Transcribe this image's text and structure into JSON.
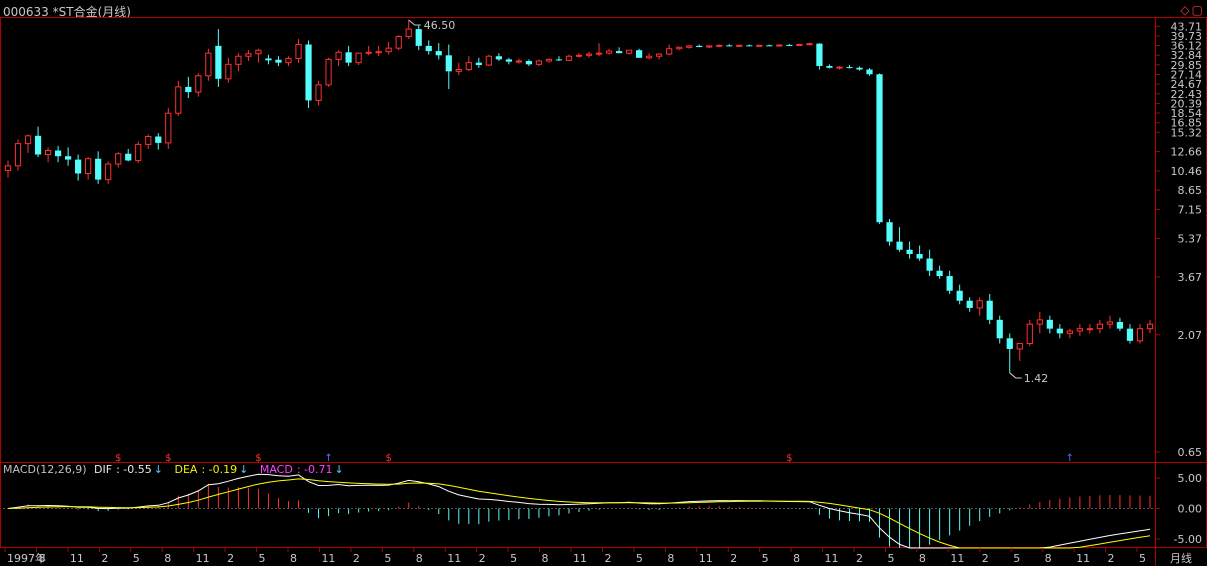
{
  "title": "000633 *ST合金(月线)",
  "header_icons": [
    "diamond-icon",
    "restore-window-icon"
  ],
  "colors": {
    "up": "#ff3030",
    "down": "#54fcfc",
    "border": "#b00000",
    "axis_text": "#c8c8c8",
    "dif": "#ffffff",
    "dea": "#ffff00",
    "macd": "#ff40ff"
  },
  "chart_data": [
    {
      "type": "candlestick",
      "title": "000633 *ST合金(月线)",
      "y_scale": "log",
      "ylim": [
        0.65,
        46.5
      ],
      "y_ticks": [
        "43.71",
        "39.73",
        "36.12",
        "32.84",
        "29.85",
        "27.14",
        "24.67",
        "22.43",
        "20.39",
        "18.54",
        "16.85",
        "15.32",
        "12.66",
        "10.46",
        "8.65",
        "7.15",
        "5.37",
        "3.67",
        "2.07",
        "0.65"
      ],
      "annotations": [
        {
          "text": "46.50",
          "kind": "max"
        },
        {
          "text": "1.42",
          "kind": "min"
        }
      ],
      "signal_markers": [
        "$",
        "$",
        "$",
        "↑",
        "$",
        "$",
        "↑"
      ],
      "candles": [
        [
          10.5,
          11.6,
          9.8,
          11.0
        ],
        [
          11.0,
          14.3,
          10.5,
          13.7
        ],
        [
          13.7,
          15.0,
          12.5,
          14.8
        ],
        [
          14.8,
          16.2,
          12.0,
          12.3
        ],
        [
          12.3,
          13.2,
          11.4,
          12.8
        ],
        [
          12.8,
          13.4,
          11.4,
          12.1
        ],
        [
          12.1,
          13.2,
          11.0,
          11.7
        ],
        [
          11.7,
          12.3,
          9.5,
          10.2
        ],
        [
          10.2,
          12.0,
          9.6,
          11.8
        ],
        [
          11.8,
          12.7,
          9.2,
          9.6
        ],
        [
          9.6,
          11.5,
          9.2,
          11.2
        ],
        [
          11.2,
          12.6,
          10.8,
          12.4
        ],
        [
          12.4,
          13.0,
          11.5,
          11.6
        ],
        [
          11.6,
          14.0,
          11.3,
          13.6
        ],
        [
          13.6,
          15.0,
          13.0,
          14.7
        ],
        [
          14.7,
          15.2,
          12.9,
          13.8
        ],
        [
          13.8,
          19.5,
          13.0,
          18.5
        ],
        [
          18.5,
          25.5,
          18.0,
          24.0
        ],
        [
          24.0,
          26.5,
          21.5,
          22.8
        ],
        [
          22.8,
          27.5,
          21.8,
          26.8
        ],
        [
          26.8,
          35.0,
          25.5,
          33.5
        ],
        [
          36.0,
          42.5,
          24.0,
          26.0
        ],
        [
          26.0,
          32.0,
          25.0,
          30.0
        ],
        [
          30.0,
          33.5,
          28.0,
          32.5
        ],
        [
          32.5,
          34.5,
          31.0,
          33.3
        ],
        [
          33.3,
          35.0,
          30.5,
          34.5
        ],
        [
          31.8,
          33.0,
          30.0,
          31.2
        ],
        [
          31.4,
          32.5,
          29.5,
          30.5
        ],
        [
          30.5,
          32.5,
          29.5,
          31.8
        ],
        [
          31.8,
          38.5,
          30.5,
          36.5
        ],
        [
          36.5,
          38.0,
          19.5,
          21.0
        ],
        [
          21.0,
          25.5,
          20.0,
          24.5
        ],
        [
          24.5,
          32.0,
          24.0,
          31.5
        ],
        [
          31.5,
          34.5,
          29.5,
          33.8
        ],
        [
          33.8,
          36.0,
          29.5,
          30.5
        ],
        [
          30.5,
          33.5,
          29.8,
          33.5
        ],
        [
          33.5,
          36.0,
          32.8,
          33.8
        ],
        [
          33.8,
          36.0,
          32.5,
          34.0
        ],
        [
          34.0,
          37.5,
          33.0,
          35.2
        ],
        [
          35.2,
          40.0,
          34.5,
          39.5
        ],
        [
          39.5,
          46.5,
          38.5,
          42.5
        ],
        [
          42.5,
          44.0,
          34.5,
          36.0
        ],
        [
          36.0,
          38.0,
          33.0,
          34.2
        ],
        [
          34.2,
          37.0,
          31.5,
          32.8
        ],
        [
          32.8,
          36.5,
          23.5,
          28.0
        ],
        [
          28.0,
          30.5,
          27.0,
          28.5
        ],
        [
          28.5,
          32.5,
          28.0,
          30.5
        ],
        [
          30.5,
          32.0,
          29.0,
          29.8
        ],
        [
          29.8,
          33.0,
          29.5,
          32.5
        ],
        [
          32.5,
          33.5,
          31.0,
          31.5
        ],
        [
          31.5,
          32.0,
          30.0,
          30.8
        ],
        [
          30.8,
          31.8,
          30.2,
          31.0
        ],
        [
          31.0,
          31.5,
          29.5,
          30.0
        ],
        [
          30.0,
          31.5,
          29.5,
          31.0
        ],
        [
          31.0,
          31.8,
          30.5,
          31.5
        ],
        [
          31.5,
          32.5,
          31.0,
          31.2
        ],
        [
          31.2,
          33.0,
          31.0,
          32.5
        ],
        [
          32.5,
          33.5,
          32.0,
          32.8
        ],
        [
          32.8,
          34.0,
          32.0,
          33.2
        ],
        [
          33.2,
          37.0,
          32.5,
          33.5
        ],
        [
          33.5,
          35.0,
          33.0,
          34.2
        ],
        [
          34.2,
          35.5,
          33.5,
          33.5
        ],
        [
          33.5,
          34.5,
          33.0,
          34.5
        ],
        [
          34.5,
          35.0,
          32.0,
          32.0
        ],
        [
          32.0,
          33.5,
          31.5,
          32.5
        ],
        [
          32.5,
          33.5,
          31.5,
          33.2
        ],
        [
          33.2,
          36.5,
          32.8,
          35.0
        ],
        [
          35.0,
          35.8,
          34.5,
          35.5
        ],
        [
          35.5,
          36.3,
          35.0,
          36.0
        ],
        [
          36.0,
          36.5,
          35.5,
          35.6
        ],
        [
          35.6,
          36.2,
          35.2,
          36.0
        ],
        [
          36.0,
          36.5,
          35.6,
          36.2
        ],
        [
          36.2,
          36.6,
          35.8,
          35.9
        ],
        [
          35.9,
          36.4,
          35.7,
          36.2
        ],
        [
          36.2,
          36.5,
          35.9,
          36.1
        ],
        [
          36.1,
          36.4,
          35.9,
          36.2
        ],
        [
          36.2,
          36.5,
          36.0,
          36.1
        ],
        [
          36.1,
          36.6,
          35.9,
          36.3
        ],
        [
          36.3,
          36.7,
          36.0,
          36.2
        ],
        [
          36.2,
          36.8,
          36.0,
          36.5
        ],
        [
          36.5,
          37.2,
          36.2,
          36.8
        ],
        [
          36.8,
          37.0,
          28.5,
          29.5
        ],
        [
          29.5,
          30.0,
          28.8,
          29.0
        ],
        [
          29.0,
          29.5,
          28.5,
          29.2
        ],
        [
          29.2,
          29.8,
          28.8,
          29.0
        ],
        [
          29.0,
          29.4,
          28.2,
          28.5
        ],
        [
          28.5,
          28.9,
          26.8,
          27.2
        ],
        [
          27.2,
          27.4,
          6.2,
          6.3
        ],
        [
          6.3,
          6.5,
          5.0,
          5.2
        ],
        [
          5.2,
          6.0,
          4.7,
          4.8
        ],
        [
          4.8,
          5.2,
          4.4,
          4.6
        ],
        [
          4.6,
          5.0,
          4.3,
          4.4
        ],
        [
          4.4,
          4.8,
          3.7,
          3.9
        ],
        [
          3.9,
          4.1,
          3.6,
          3.7
        ],
        [
          3.7,
          3.9,
          3.1,
          3.2
        ],
        [
          3.2,
          3.4,
          2.8,
          2.9
        ],
        [
          2.9,
          3.0,
          2.6,
          2.7
        ],
        [
          2.7,
          3.0,
          2.5,
          2.9
        ],
        [
          2.9,
          3.1,
          2.3,
          2.4
        ],
        [
          2.4,
          2.5,
          1.9,
          2.0
        ],
        [
          2.0,
          2.1,
          1.42,
          1.8
        ],
        [
          1.8,
          1.9,
          1.6,
          1.9
        ],
        [
          1.9,
          2.4,
          1.85,
          2.3
        ],
        [
          2.3,
          2.6,
          2.1,
          2.4
        ],
        [
          2.4,
          2.5,
          2.1,
          2.2
        ],
        [
          2.2,
          2.3,
          2.0,
          2.1
        ],
        [
          2.1,
          2.2,
          2.0,
          2.15
        ],
        [
          2.15,
          2.3,
          2.05,
          2.2
        ],
        [
          2.2,
          2.3,
          2.1,
          2.2
        ],
        [
          2.2,
          2.4,
          2.1,
          2.3
        ],
        [
          2.3,
          2.5,
          2.2,
          2.35
        ],
        [
          2.35,
          2.45,
          2.15,
          2.2
        ],
        [
          2.2,
          2.3,
          1.9,
          1.95
        ],
        [
          1.95,
          2.3,
          1.9,
          2.2
        ],
        [
          2.2,
          2.4,
          2.1,
          2.3
        ]
      ]
    },
    {
      "type": "macd",
      "title": "MACD(12,26,9)",
      "series": [
        {
          "name": "DIF",
          "last": "-0.55"
        },
        {
          "name": "DEA",
          "last": "-0.19"
        },
        {
          "name": "MACD",
          "last": "-0.71"
        }
      ],
      "y_ticks": [
        "5.00",
        "0.00",
        "-5.00"
      ],
      "ylim": [
        -6.5,
        7.0
      ],
      "x_labels": [
        "1997年",
        "8",
        "11",
        "2",
        "5",
        "8",
        "11",
        "2",
        "5",
        "8",
        "11",
        "2",
        "5",
        "8",
        "11",
        "2",
        "5",
        "8",
        "11",
        "2",
        "5",
        "8",
        "11",
        "2",
        "5",
        "8",
        "11",
        "2",
        "5",
        "8",
        "11",
        "2",
        "5",
        "8",
        "11",
        "2",
        "5"
      ],
      "period_label": "月线"
    }
  ]
}
